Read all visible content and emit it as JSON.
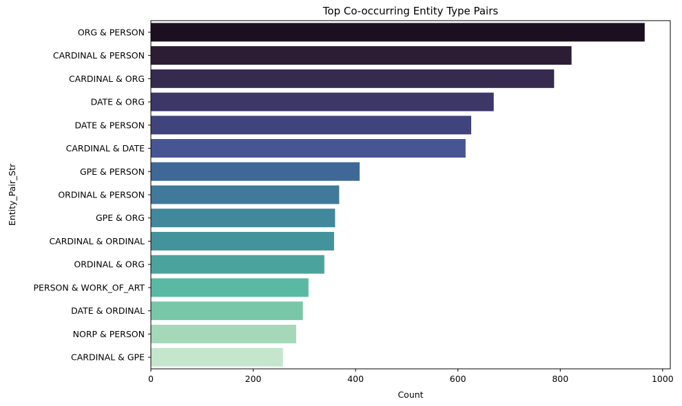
{
  "chart_data": {
    "type": "bar",
    "orientation": "horizontal",
    "title": "Top Co-occurring Entity Type Pairs",
    "xlabel": "Count",
    "ylabel": "Entity_Pair_Str",
    "xlim": [
      0,
      1015
    ],
    "xticks": [
      0,
      200,
      400,
      600,
      800,
      1000
    ],
    "grid": false,
    "categories": [
      "ORG & PERSON",
      "CARDINAL & PERSON",
      "CARDINAL & ORG",
      "DATE & ORG",
      "DATE & PERSON",
      "CARDINAL & DATE",
      "GPE & PERSON",
      "ORDINAL & PERSON",
      "GPE & ORG",
      "CARDINAL & ORDINAL",
      "ORDINAL & ORG",
      "PERSON & WORK_OF_ART",
      "DATE & ORDINAL",
      "NORP & PERSON",
      "CARDINAL & GPE"
    ],
    "values": [
      965,
      822,
      788,
      670,
      626,
      615,
      408,
      368,
      360,
      358,
      339,
      308,
      297,
      284,
      258
    ],
    "colors": [
      "#1c1020",
      "#2c1d35",
      "#362a4f",
      "#3c3766",
      "#41447c",
      "#465693",
      "#3f6897",
      "#41799a",
      "#41889c",
      "#43939c",
      "#4aa49d",
      "#5ab9a3",
      "#78c7a8",
      "#a4d8b9",
      "#c4e6cd"
    ]
  }
}
